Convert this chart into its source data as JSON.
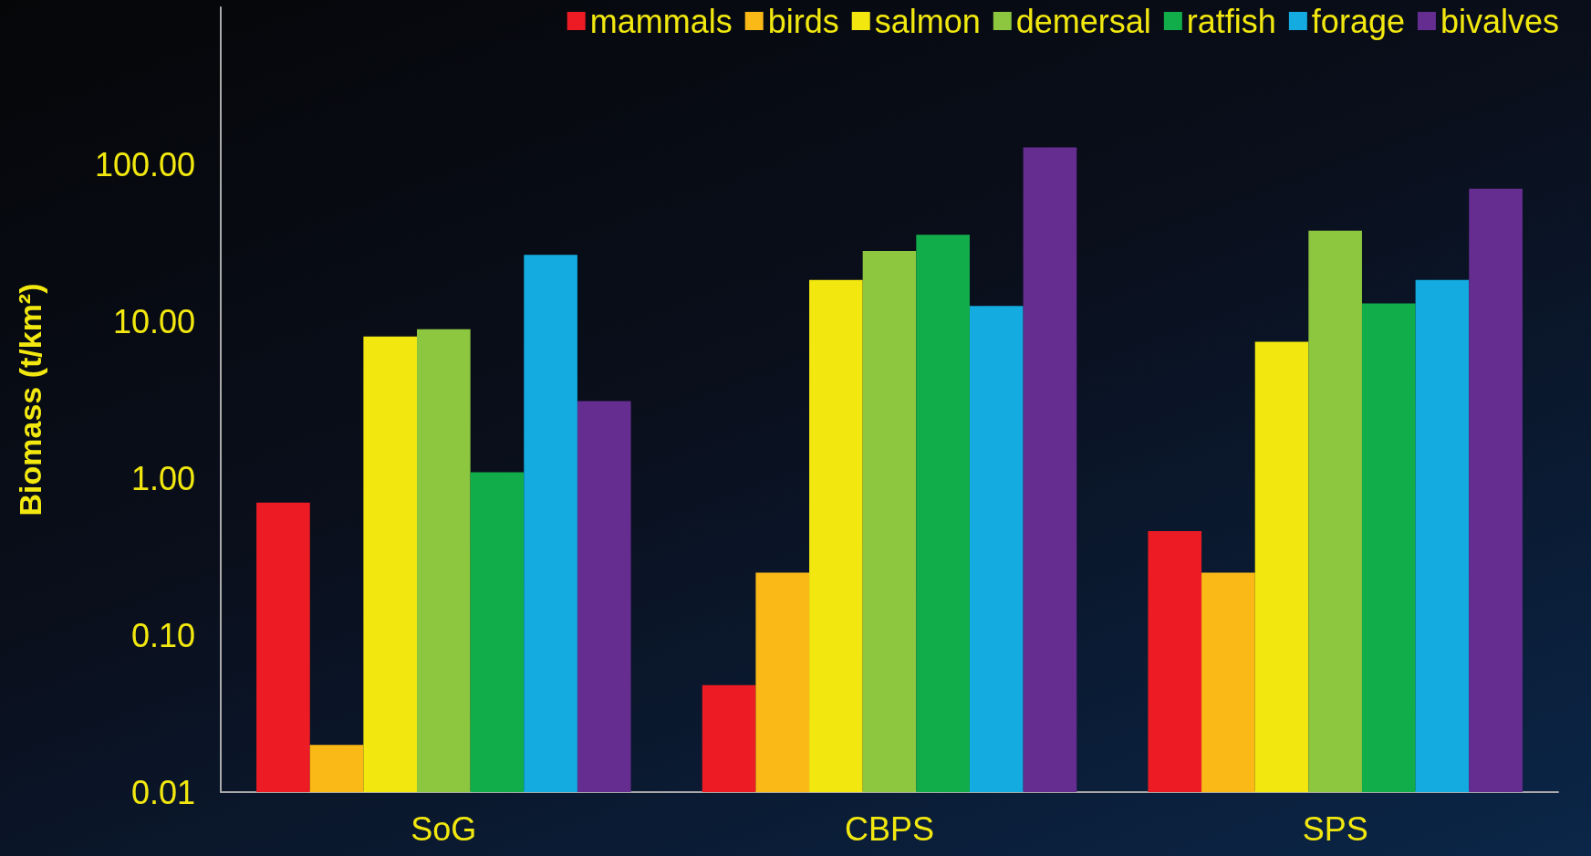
{
  "chart_data": {
    "type": "bar",
    "ylabel": "Biomass (t/km²)",
    "categories": [
      "SoG",
      "CBPS",
      "SPS"
    ],
    "log": "y",
    "ylim": [
      0.01,
      1000
    ],
    "yticks": [
      {
        "value": 0.01,
        "label": "0.01"
      },
      {
        "value": 0.1,
        "label": "0.10"
      },
      {
        "value": 1,
        "label": "1.00"
      },
      {
        "value": 10,
        "label": "10.00"
      },
      {
        "value": 100,
        "label": "100.00"
      }
    ],
    "grid": false,
    "legend": "top right",
    "series": [
      {
        "name": "mammals",
        "color": "#ed1c24",
        "values": [
          0.7,
          0.048,
          0.46
        ]
      },
      {
        "name": "birds",
        "color": "#fbb917",
        "values": [
          0.02,
          0.25,
          0.25
        ]
      },
      {
        "name": "salmon",
        "color": "#f2e80f",
        "values": [
          8.0,
          18.3,
          7.4
        ]
      },
      {
        "name": "demersal",
        "color": "#8dc63f",
        "values": [
          8.9,
          28,
          37.8
        ]
      },
      {
        "name": "ratfish",
        "color": "#12ad4b",
        "values": [
          1.09,
          35.6,
          13.0
        ]
      },
      {
        "name": "forage",
        "color": "#13abe0",
        "values": [
          26.5,
          12.5,
          18.3
        ]
      },
      {
        "name": "bivalves",
        "color": "#662d91",
        "values": [
          3.1,
          128,
          70
        ]
      }
    ]
  }
}
